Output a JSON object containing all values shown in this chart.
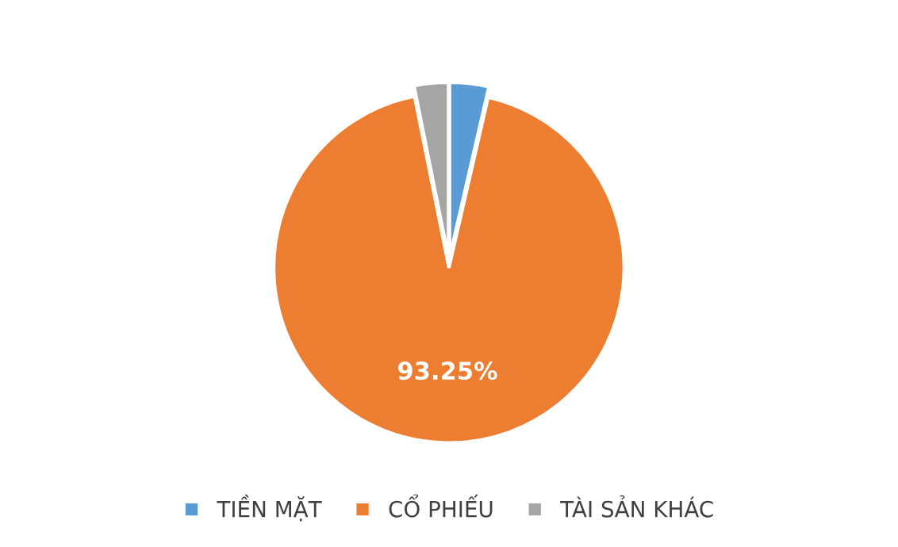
{
  "chart_data": {
    "type": "pie",
    "categories": [
      "TIỀN MẶT",
      "CỔ PHIẾU",
      "TÀI SẢN KHÁC"
    ],
    "values": [
      3.6,
      93.25,
      3.15
    ],
    "colors": [
      "#5b9bd5",
      "#ed7d31",
      "#a5a5a5"
    ],
    "value_labels": [
      null,
      "93.25%",
      null
    ],
    "legend": "bottom"
  }
}
